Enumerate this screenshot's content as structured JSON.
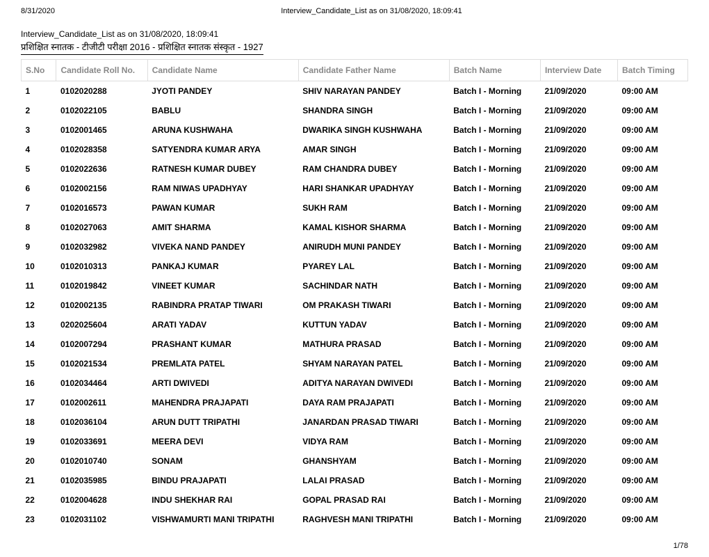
{
  "header": {
    "left_date": "8/31/2020",
    "center_title": "Interview_Candidate_List as on 31/08/2020, 18:09:41"
  },
  "title": "Interview_Candidate_List as on 31/08/2020, 18:09:41",
  "subtitle": "प्रशिक्षित स्नातक - टीजीटी परीक्षा 2016 - प्रशिक्षित स्नातक संस्कृत - 1927",
  "columns": [
    "S.No",
    "Candidate Roll No.",
    "Candidate Name",
    "Candidate Father Name",
    "Batch Name",
    "Interview Date",
    "Batch Timing"
  ],
  "rows": [
    [
      "1",
      "0102020288",
      "JYOTI PANDEY",
      "SHIV NARAYAN PANDEY",
      "Batch I - Morning",
      "21/09/2020",
      "09:00 AM"
    ],
    [
      "2",
      "0102022105",
      "BABLU",
      "SHANDRA SINGH",
      "Batch I - Morning",
      "21/09/2020",
      "09:00 AM"
    ],
    [
      "3",
      "0102001465",
      "ARUNA KUSHWAHA",
      "DWARIKA SINGH KUSHWAHA",
      "Batch I - Morning",
      "21/09/2020",
      "09:00 AM"
    ],
    [
      "4",
      "0102028358",
      "SATYENDRA KUMAR ARYA",
      "AMAR SINGH",
      "Batch I - Morning",
      "21/09/2020",
      "09:00 AM"
    ],
    [
      "5",
      "0102022636",
      "RATNESH KUMAR DUBEY",
      "RAM CHANDRA DUBEY",
      "Batch I - Morning",
      "21/09/2020",
      "09:00 AM"
    ],
    [
      "6",
      "0102002156",
      "RAM NIWAS UPADHYAY",
      "HARI SHANKAR UPADHYAY",
      "Batch I - Morning",
      "21/09/2020",
      "09:00 AM"
    ],
    [
      "7",
      "0102016573",
      "PAWAN KUMAR",
      "SUKH RAM",
      "Batch I - Morning",
      "21/09/2020",
      "09:00 AM"
    ],
    [
      "8",
      "0102027063",
      "AMIT SHARMA",
      "KAMAL KISHOR SHARMA",
      "Batch I - Morning",
      "21/09/2020",
      "09:00 AM"
    ],
    [
      "9",
      "0102032982",
      "VIVEKA NAND PANDEY",
      "ANIRUDH MUNI PANDEY",
      "Batch I - Morning",
      "21/09/2020",
      "09:00 AM"
    ],
    [
      "10",
      "0102010313",
      "PANKAJ KUMAR",
      "PYAREY LAL",
      "Batch I - Morning",
      "21/09/2020",
      "09:00 AM"
    ],
    [
      "11",
      "0102019842",
      "VINEET KUMAR",
      "SACHINDAR NATH",
      "Batch I - Morning",
      "21/09/2020",
      "09:00 AM"
    ],
    [
      "12",
      "0102002135",
      "RABINDRA PRATAP TIWARI",
      "OM PRAKASH TIWARI",
      "Batch I - Morning",
      "21/09/2020",
      "09:00 AM"
    ],
    [
      "13",
      "0202025604",
      "ARATI YADAV",
      "KUTTUN YADAV",
      "Batch I - Morning",
      "21/09/2020",
      "09:00 AM"
    ],
    [
      "14",
      "0102007294",
      "PRASHANT KUMAR",
      "MATHURA PRASAD",
      "Batch I - Morning",
      "21/09/2020",
      "09:00 AM"
    ],
    [
      "15",
      "0102021534",
      "PREMLATA PATEL",
      "SHYAM NARAYAN PATEL",
      "Batch I - Morning",
      "21/09/2020",
      "09:00 AM"
    ],
    [
      "16",
      "0102034464",
      "ARTI DWIVEDI",
      "ADITYA NARAYAN DWIVEDI",
      "Batch I - Morning",
      "21/09/2020",
      "09:00 AM"
    ],
    [
      "17",
      "0102002611",
      "MAHENDRA PRAJAPATI",
      "DAYA RAM PRAJAPATI",
      "Batch I - Morning",
      "21/09/2020",
      "09:00 AM"
    ],
    [
      "18",
      "0102036104",
      "ARUN DUTT TRIPATHI",
      "JANARDAN PRASAD TIWARI",
      "Batch I - Morning",
      "21/09/2020",
      "09:00 AM"
    ],
    [
      "19",
      "0102033691",
      "MEERA DEVI",
      "VIDYA RAM",
      "Batch I - Morning",
      "21/09/2020",
      "09:00 AM"
    ],
    [
      "20",
      "0102010740",
      "SONAM",
      "GHANSHYAM",
      "Batch I - Morning",
      "21/09/2020",
      "09:00 AM"
    ],
    [
      "21",
      "0102035985",
      "BINDU PRAJAPATI",
      "LALAI PRASAD",
      "Batch I - Morning",
      "21/09/2020",
      "09:00 AM"
    ],
    [
      "22",
      "0102004628",
      "INDU SHEKHAR RAI",
      "GOPAL PRASAD RAI",
      "Batch I - Morning",
      "21/09/2020",
      "09:00 AM"
    ],
    [
      "23",
      "0102031102",
      "VISHWAMURTI MANI TRIPATHI",
      "RAGHVESH MANI TRIPATHI",
      "Batch I - Morning",
      "21/09/2020",
      "09:00 AM"
    ]
  ],
  "footer_page": "1/78"
}
